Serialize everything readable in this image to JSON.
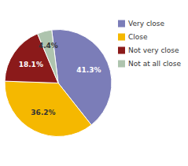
{
  "chart_data": {
    "type": "pie",
    "categories": [
      "Very close",
      "Close",
      "Not very close",
      "Not at all close"
    ],
    "values": [
      41.3,
      36.2,
      18.1,
      4.4
    ],
    "value_labels": [
      "41.3%",
      "36.2%",
      "18.1%",
      "4.4%"
    ],
    "colors": [
      "#7b7db8",
      "#f5b800",
      "#8b1a1a",
      "#aec4ae"
    ],
    "data_labels": true,
    "legend": "right"
  }
}
